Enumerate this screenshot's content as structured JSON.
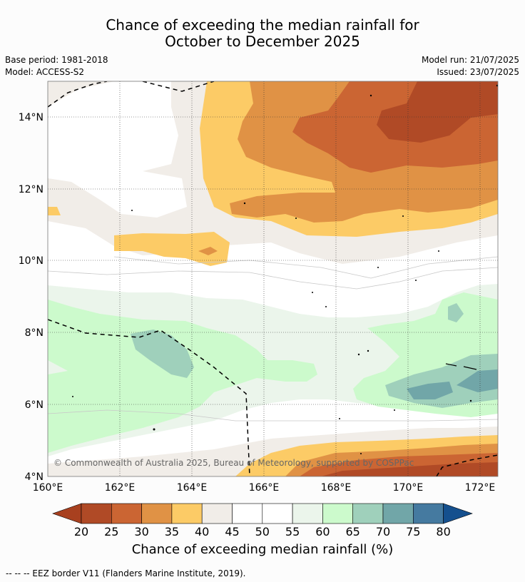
{
  "header": {
    "title_line1": "Chance of exceeding the median rainfall for",
    "title_line2": "October to December 2025",
    "base_period": "Base period: 1981-2018",
    "model": "Model: ACCESS-S2",
    "model_run": "Model run: 21/07/2025",
    "issued": "Issued: 23/07/2025"
  },
  "map": {
    "copyright": "© Commonwealth of Australia 2025, Bureau of Meteorology, supported by COSPPac",
    "lon_ticks": [
      "160°E",
      "162°E",
      "164°E",
      "166°E",
      "168°E",
      "170°E",
      "172°E"
    ],
    "lat_ticks": [
      "14°N",
      "12°N",
      "10°N",
      "8°N",
      "6°N",
      "4°N"
    ],
    "lon_range": [
      160,
      172.5
    ],
    "lat_range": [
      4,
      15
    ],
    "border_style": "dashed"
  },
  "colorbar": {
    "title": "Chance of exceeding median rainfall (%)",
    "labels": [
      "20",
      "25",
      "30",
      "35",
      "40",
      "45",
      "50",
      "55",
      "60",
      "65",
      "70",
      "75",
      "80"
    ],
    "colors": [
      "#a8401f",
      "#b04a26",
      "#cb6533",
      "#e09245",
      "#fccb66",
      "#f1ede8",
      "#ffffff",
      "#ffffff",
      "#ebf5eb",
      "#ccfacc",
      "#9fd0bb",
      "#71a6a8",
      "#457aa0",
      "#15508e"
    ]
  },
  "footnote": "--  --  -- EEZ border V11 (Flanders Marine Institute, 2019)."
}
